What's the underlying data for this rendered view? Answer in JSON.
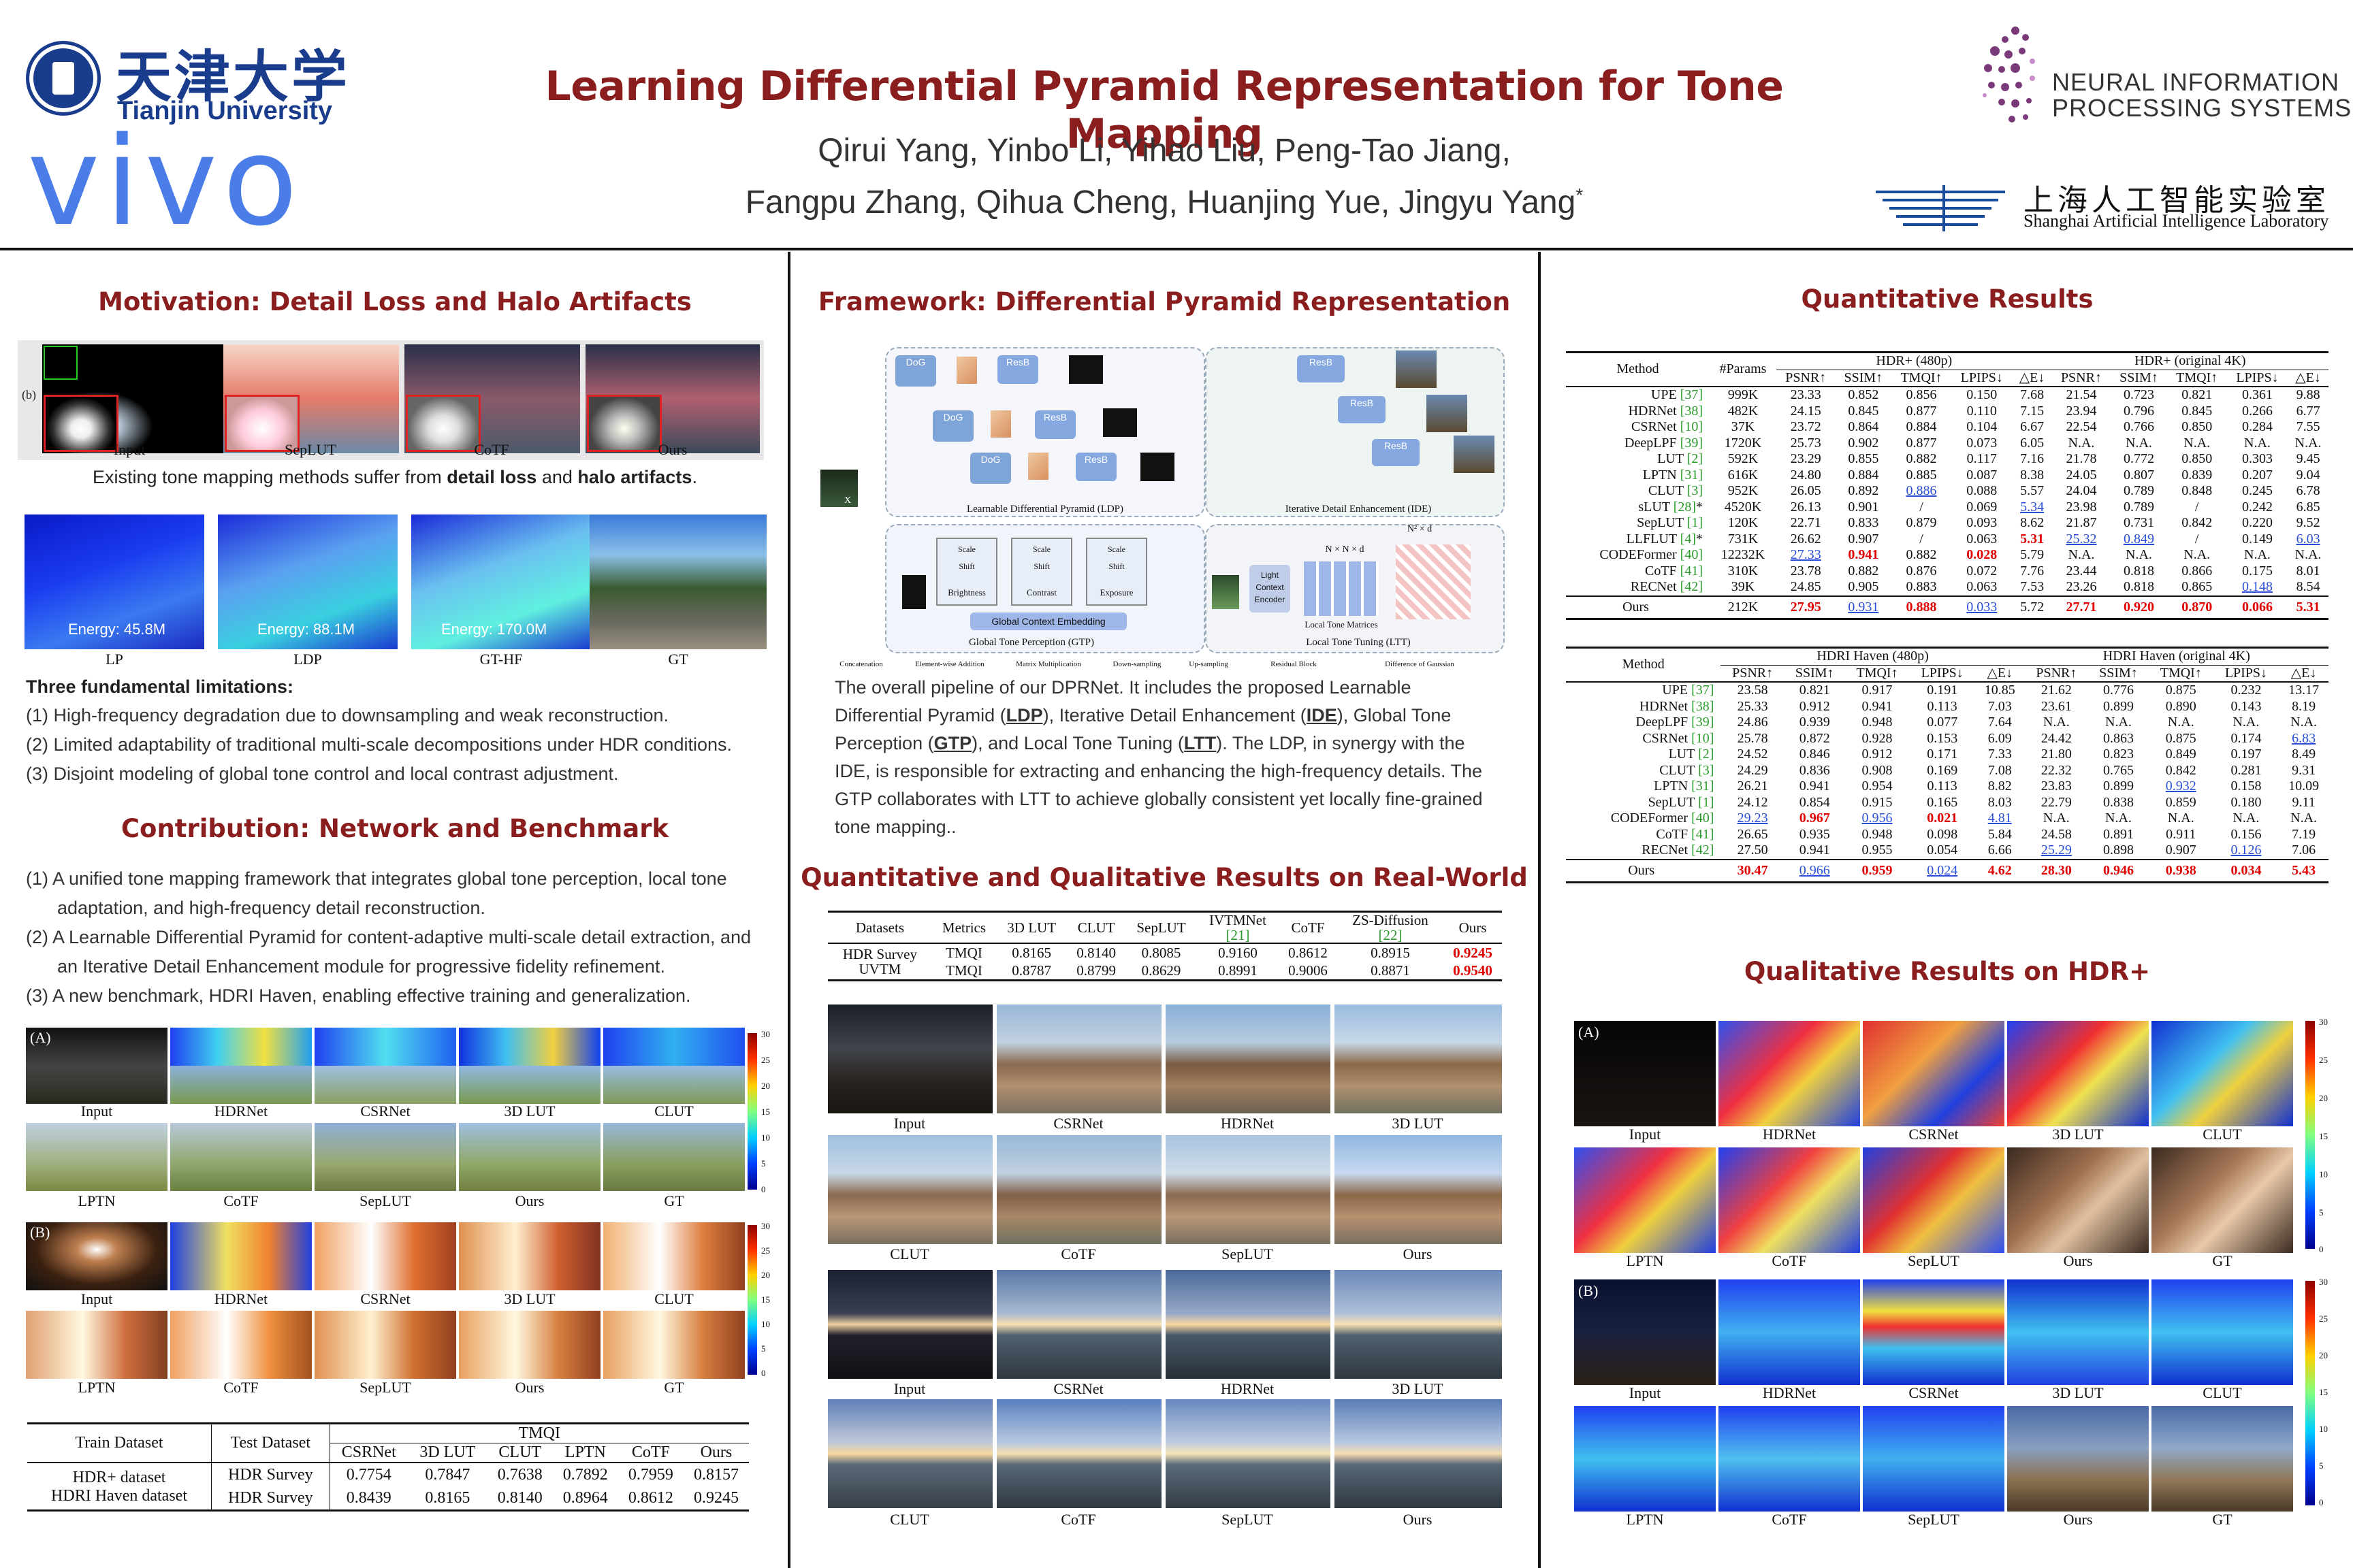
{
  "header": {
    "title": "Learning Differential Pyramid Representation for Tone Mapping",
    "authors_line1": "Qirui Yang, Yinbo Li, Yihao Liu, Peng-Tao Jiang,",
    "authors_line2": "Fangpu Zhang, Qihua Cheng, Huanjing Yue, Jingyu Yang",
    "corresponding_mark": "*",
    "tju_cn": "天津大学",
    "tju_en": "Tianjin University",
    "vivo": "vivo",
    "neurips_l1": "NEURAL INFORMATION",
    "neurips_l2": "PROCESSING SYSTEMS",
    "shlab_cn": "上海人工智能实验室",
    "shlab_en": "Shanghai Artificial Intelligence Laboratory"
  },
  "col1": {
    "motivation_title": "Motivation: Detail Loss and Halo Artifacts",
    "panel_tag": "(b)",
    "fig1_caps": [
      "Input",
      "SepLUT",
      "CoTF",
      "Ours"
    ],
    "fig1_text_a": "Existing tone mapping methods suffer from ",
    "fig1_text_b": "detail loss",
    "fig1_text_c": " and ",
    "fig1_text_d": "halo artifacts",
    "fig1_text_e": ".",
    "energy": [
      "Energy: 45.8M",
      "Energy: 88.1M",
      "Energy: 170.0M"
    ],
    "fig2_caps": [
      "LP",
      "LDP",
      "GT-HF",
      "GT"
    ],
    "limits_title": "Three fundamental limitations:",
    "limits": [
      "(1)  High-frequency degradation due to downsampling and weak reconstruction.",
      "(2)  Limited adaptability of traditional multi-scale decompositions under HDR conditions.",
      "(3)  Disjoint modeling of global tone control and local contrast adjustment."
    ],
    "contribution_title": "Contribution: Network and Benchmark",
    "contribs": [
      "(1)  A unified tone mapping framework that integrates global tone perception, local tone adaptation, and high-frequency detail reconstruction.",
      "(2)  A Learnable Differential Pyramid for content-adaptive multi-scale detail extraction, and an Iterative Detail Enhancement module for progressive fidelity refinement.",
      "(3)  A new benchmark, HDRI Haven, enabling effective training and generalization."
    ],
    "gridA_tag": "(A)",
    "gridB_tag": "(B)",
    "grid_caps_r1": [
      "Input",
      "HDRNet",
      "CSRNet",
      "3D LUT",
      "CLUT"
    ],
    "grid_caps_r2": [
      "LPTN",
      "CoTF",
      "SepLUT",
      "Ours",
      "GT"
    ],
    "cbarA_ticks": [
      "30",
      "25",
      "20",
      "15",
      "10",
      "5",
      "0"
    ],
    "cbarB_ticks": [
      "30",
      "25",
      "20",
      "15",
      "10",
      "5",
      "0"
    ],
    "t1": {
      "h_train": "Train Dataset",
      "h_test": "Test Dataset",
      "h_tmqi": "TMQI",
      "cols": [
        "CSRNet",
        "3D LUT",
        "CLUT",
        "LPTN",
        "CoTF",
        "Ours"
      ],
      "rows": [
        {
          "train": "HDR+ dataset",
          "test": "HDR Survey",
          "v": [
            "0.7754",
            "0.7847",
            "0.7638",
            "0.7892",
            "0.7959",
            "0.8157"
          ]
        },
        {
          "train": "HDRI Haven dataset",
          "test": "HDR Survey",
          "v": [
            "0.8439",
            "0.8165",
            "0.8140",
            "0.8964",
            "0.8612",
            "0.9245"
          ]
        }
      ]
    }
  },
  "col2": {
    "framework_title": "Framework: Differential Pyramid Representation",
    "diag": {
      "ldp": "Learnable Differential Pyramid (LDP)",
      "ide": "Iterative Detail Enhancement (IDE)",
      "gtp": "Global Tone Perception (GTP)",
      "ltt": "Local Tone Tuning (LTT)",
      "gce": "Global Context Embedding",
      "lce": "Light Context Encoder",
      "ltm": "Local Tone Matrices",
      "dog": "DoG",
      "resb": "ResB",
      "scale": "Scale",
      "shift": "Shift",
      "brightness": "Brightness",
      "contrast": "Contrast",
      "exposure": "Exposure",
      "x": "X",
      "nnd": "N × N × d",
      "n2d": "N² × d",
      "legend": [
        "Concatenation",
        "Element-wise Addition",
        "Matrix Multiplication",
        "Down-sampling",
        "Up-sampling",
        "Residual Block",
        "Difference of Gaussian"
      ]
    },
    "fw_text": [
      {
        "t": "The overall pipeline of our DPRNet. It includes the proposed Learnable Differential Pyramid ("
      },
      {
        "b": "LDP"
      },
      {
        "t": "), Iterative Detail Enhancement ("
      },
      {
        "b": "IDE"
      },
      {
        "t": "), Global Tone Perception ("
      },
      {
        "b": "GTP"
      },
      {
        "t": "), and Local Tone Tuning ("
      },
      {
        "b": "LTT"
      },
      {
        "t": "). The LDP, in synergy with the IDE, is responsible for extracting and enhancing the high-frequency details. The GTP collaborates with LTT to achieve globally consistent yet locally fine-grained tone mapping.."
      }
    ],
    "real_title": "Quantitative and Qualitative Results on Real-World",
    "t2": {
      "cols": [
        "Datasets",
        "Metrics",
        "3D LUT",
        "CLUT",
        "SepLUT",
        "IVTMNet",
        "CoTF",
        "ZS-Diffusion",
        "Ours"
      ],
      "refs": [
        "",
        "",
        "",
        "",
        "",
        "[21]",
        "",
        "[22]",
        ""
      ],
      "rows": [
        [
          "HDR Survey",
          "TMQI",
          "0.8165",
          "0.8140",
          "0.8085",
          "0.9160",
          "0.8612",
          "0.8915",
          "0.9245"
        ],
        [
          "UVTM",
          "TMQI",
          "0.8787",
          "0.8799",
          "0.8629",
          "0.8991",
          "0.9006",
          "0.8871",
          "0.9540"
        ]
      ]
    },
    "rw_caps": [
      [
        "Input",
        "CSRNet",
        "HDRNet",
        "3D LUT"
      ],
      [
        "CLUT",
        "CoTF",
        "SepLUT",
        "Ours"
      ],
      [
        "Input",
        "CSRNet",
        "HDRNet",
        "3D LUT"
      ],
      [
        "CLUT",
        "CoTF",
        "SepLUT",
        "Ours"
      ]
    ]
  },
  "col3": {
    "quant_title": "Quantitative Results",
    "t3": {
      "h_method": "Method",
      "h_params": "#Params",
      "h_g1": "HDR+ (480p)",
      "h_g2": "HDR+ (original 4K)",
      "metrics": [
        "PSNR↑",
        "SSIM↑",
        "TMQI↑",
        "LPIPS↓",
        "△E↓"
      ],
      "rows": [
        [
          "UPE [37]",
          "999K",
          "23.33",
          "0.852",
          "0.856",
          "0.150",
          "7.68",
          "21.54",
          "0.723",
          "0.821",
          "0.361",
          "9.88"
        ],
        [
          "HDRNet [38]",
          "482K",
          "24.15",
          "0.845",
          "0.877",
          "0.110",
          "7.15",
          "23.94",
          "0.796",
          "0.845",
          "0.266",
          "6.77"
        ],
        [
          "CSRNet [10]",
          "37K",
          "23.72",
          "0.864",
          "0.884",
          "0.104",
          "6.67",
          "22.54",
          "0.766",
          "0.850",
          "0.284",
          "7.55"
        ],
        [
          "DeepLPF [39]",
          "1720K",
          "25.73",
          "0.902",
          "0.877",
          "0.073",
          "6.05",
          "N.A.",
          "N.A.",
          "N.A.",
          "N.A.",
          "N.A."
        ],
        [
          "LUT [2]",
          "592K",
          "23.29",
          "0.855",
          "0.882",
          "0.117",
          "7.16",
          "21.78",
          "0.772",
          "0.850",
          "0.303",
          "9.45"
        ],
        [
          "LPTN [31]",
          "616K",
          "24.80",
          "0.884",
          "0.885",
          "0.087",
          "8.38",
          "24.05",
          "0.807",
          "0.839",
          "0.207",
          "9.04"
        ],
        [
          "CLUT [3]",
          "952K",
          "26.05",
          "0.892",
          "0.886",
          "0.088",
          "5.57",
          "24.04",
          "0.789",
          "0.848",
          "0.245",
          "6.78"
        ],
        [
          "sLUT [28]*",
          "4520K",
          "26.13",
          "0.901",
          "/",
          "0.069",
          "5.34",
          "23.98",
          "0.789",
          "/",
          "0.242",
          "6.85"
        ],
        [
          "SepLUT [1]",
          "120K",
          "22.71",
          "0.833",
          "0.879",
          "0.093",
          "8.62",
          "21.87",
          "0.731",
          "0.842",
          "0.220",
          "9.52"
        ],
        [
          "LLFLUT [4]*",
          "731K",
          "26.62",
          "0.907",
          "/",
          "0.063",
          "5.31",
          "25.32",
          "0.849",
          "/",
          "0.149",
          "6.03"
        ],
        [
          "CODEFormer [40]",
          "12232K",
          "27.33",
          "0.941",
          "0.882",
          "0.028",
          "5.79",
          "N.A.",
          "N.A.",
          "N.A.",
          "N.A.",
          "N.A."
        ],
        [
          "CoTF [41]",
          "310K",
          "23.78",
          "0.882",
          "0.876",
          "0.072",
          "7.76",
          "23.44",
          "0.818",
          "0.866",
          "0.175",
          "8.01"
        ],
        [
          "RECNet [42]",
          "39K",
          "24.85",
          "0.905",
          "0.883",
          "0.063",
          "7.53",
          "23.26",
          "0.818",
          "0.865",
          "0.148",
          "8.54"
        ]
      ],
      "ours": [
        "Ours",
        "212K",
        "27.95",
        "0.931",
        "0.888",
        "0.033",
        "5.72",
        "27.71",
        "0.920",
        "0.870",
        "0.066",
        "5.31"
      ]
    },
    "t4": {
      "h_method": "Method",
      "h_g1": "HDRI Haven (480p)",
      "h_g2": "HDRI Haven (original 4K)",
      "metrics": [
        "PSNR↑",
        "SSIM↑",
        "TMQI↑",
        "LPIPS↓",
        "△E↓"
      ],
      "rows": [
        [
          "UPE [37]",
          "23.58",
          "0.821",
          "0.917",
          "0.191",
          "10.85",
          "21.62",
          "0.776",
          "0.875",
          "0.232",
          "13.17"
        ],
        [
          "HDRNet [38]",
          "25.33",
          "0.912",
          "0.941",
          "0.113",
          "7.03",
          "23.61",
          "0.899",
          "0.890",
          "0.143",
          "8.19"
        ],
        [
          "DeepLPF [39]",
          "24.86",
          "0.939",
          "0.948",
          "0.077",
          "7.64",
          "N.A.",
          "N.A.",
          "N.A.",
          "N.A.",
          "N.A."
        ],
        [
          "CSRNet [10]",
          "25.78",
          "0.872",
          "0.928",
          "0.153",
          "6.09",
          "24.42",
          "0.863",
          "0.875",
          "0.174",
          "6.83"
        ],
        [
          "LUT [2]",
          "24.52",
          "0.846",
          "0.912",
          "0.171",
          "7.33",
          "21.80",
          "0.823",
          "0.849",
          "0.197",
          "8.49"
        ],
        [
          "CLUT [3]",
          "24.29",
          "0.836",
          "0.908",
          "0.169",
          "7.08",
          "22.32",
          "0.765",
          "0.842",
          "0.281",
          "9.31"
        ],
        [
          "LPTN [31]",
          "26.21",
          "0.941",
          "0.954",
          "0.113",
          "8.82",
          "23.83",
          "0.899",
          "0.932",
          "0.158",
          "10.09"
        ],
        [
          "SepLUT [1]",
          "24.12",
          "0.854",
          "0.915",
          "0.165",
          "8.03",
          "22.79",
          "0.838",
          "0.859",
          "0.180",
          "9.11"
        ],
        [
          "CODEFormer [40]",
          "29.23",
          "0.967",
          "0.956",
          "0.021",
          "4.81",
          "N.A.",
          "N.A.",
          "N.A.",
          "N.A.",
          "N.A."
        ],
        [
          "CoTF [41]",
          "26.65",
          "0.935",
          "0.948",
          "0.098",
          "5.84",
          "24.58",
          "0.891",
          "0.911",
          "0.156",
          "7.19"
        ],
        [
          "RECNet [42]",
          "27.50",
          "0.941",
          "0.955",
          "0.054",
          "6.66",
          "25.29",
          "0.898",
          "0.907",
          "0.126",
          "7.06"
        ]
      ],
      "ours": [
        "Ours",
        "30.47",
        "0.966",
        "0.959",
        "0.024",
        "4.62",
        "28.30",
        "0.946",
        "0.938",
        "0.034",
        "5.43"
      ]
    },
    "qual_title": "Qualitative Results on HDR+",
    "gridA_tag": "(A)",
    "gridB_tag": "(B)",
    "caps_r1": [
      "Input",
      "HDRNet",
      "CSRNet",
      "3D LUT",
      "CLUT"
    ],
    "caps_r2": [
      "LPTN",
      "CoTF",
      "SepLUT",
      "Ours",
      "GT"
    ],
    "cbar_ticks": [
      "30",
      "25",
      "20",
      "15",
      "10",
      "5",
      "0"
    ]
  }
}
